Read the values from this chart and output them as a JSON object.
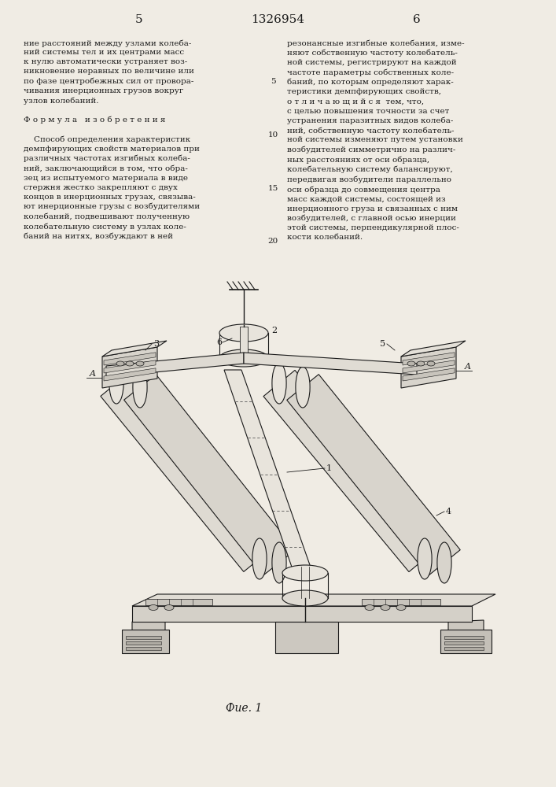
{
  "page_width": 7.07,
  "page_height": 10.0,
  "background_color": "#f0ece4",
  "header": {
    "left_page_num": "5",
    "center_patent_num": "1326954",
    "right_page_num": "6"
  },
  "left_col_text": "ние расстояний между узлами колеба-\nний системы тел и их центрами масс\nк нулю автоматически устраняет воз-\nникновение неравных по величине или\nпо фазе центробежных сил от провора-\nчивания инерционных грузов вокруг\nузлов колебаний.\n\nФ о р м у л а   и з о б р е т е н и я\n\n    Способ определения характеристик\nдемпфирующих свойств материалов при\nразличных частотах изгибных колеба-\nний, заключающийся в том, что обра-\nзец из испытуемого материала в виде\nстержня жестко закрепляют с двух\nконцов в инерционных грузах, связыва-\nют инерционные грузы с возбудителями\nколебаний, подвешивают полученную\nколебательную систему в узлах коле-\nбаний на нитях, возбуждают в ней",
  "right_col_text": "резонансные изгибные колебания, изме-\nняют собственную частоту колебатель-\nной системы, регистрируют на каждой\nчастоте параметры собственных коле-\nбаний, по которым определяют харак-\nтеристики демпфирующих свойств,\nо т л и ч а ю щ и й с я  тем, что,\nс целью повышения точности за счет\nустранения паразитных видов колеба-\nний, собственную частоту колебатель-\nной системы изменяют путем установки\nвозбудителей симметрично на различ-\nных расстояниях от оси образца,\nколебательную систему балансируют,\nпередвигая возбудители параллельно\nоси образца до совмещения центра\nмасс каждой системы, состоящей из\nинерционного груза и связанных с ним\nвозбудителей, с главной осью инерции\nэтой системы, перпендикулярной плос-\nкости колебаний.",
  "line_numbers": [
    "5",
    "10",
    "15",
    "20"
  ],
  "figure_caption": "Фие. 1",
  "text_fontsize": 7.5,
  "header_fontsize": 11,
  "bg": "#f0ece4",
  "ink": "#1a1a1a"
}
